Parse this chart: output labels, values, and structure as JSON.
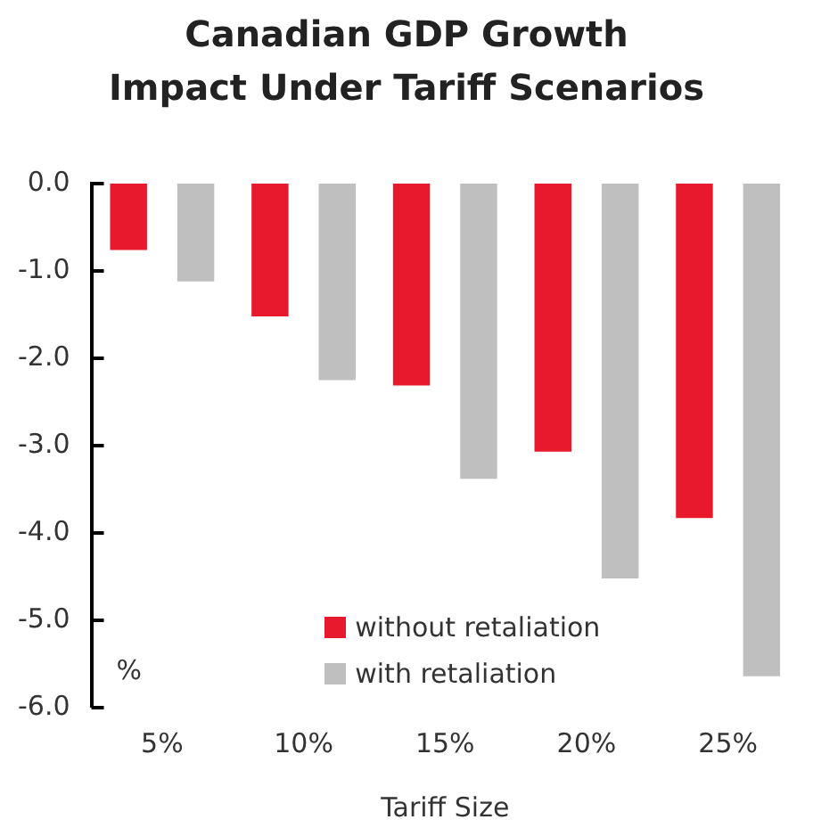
{
  "chart_data": {
    "type": "bar",
    "title": "Canadian GDP Growth\nImpact Under Tariff Scenarios",
    "xlabel": "Tariff Size",
    "categories": [
      "5%",
      "10%",
      "15%",
      "20%",
      "25%"
    ],
    "series": [
      {
        "name": "without retaliation",
        "color": "#e8192c",
        "values": [
          -0.76,
          -1.52,
          -2.31,
          -3.07,
          -3.83
        ]
      },
      {
        "name": "with retaliation",
        "color": "#bfbfbf",
        "values": [
          -1.12,
          -2.25,
          -3.38,
          -4.52,
          -5.64
        ]
      }
    ],
    "ylim": [
      -6,
      0
    ],
    "yticks": [
      {
        "value": 0,
        "label": "0.0"
      },
      {
        "value": -1,
        "label": "-1.0"
      },
      {
        "value": -2,
        "label": "-2.0"
      },
      {
        "value": -3,
        "label": "-3.0"
      },
      {
        "value": -4,
        "label": "-4.0"
      },
      {
        "value": -5,
        "label": "-5.0"
      },
      {
        "value": -6,
        "label": "-6.0"
      }
    ],
    "annotations": [
      "%"
    ],
    "legend": "bottom",
    "grid": false
  }
}
